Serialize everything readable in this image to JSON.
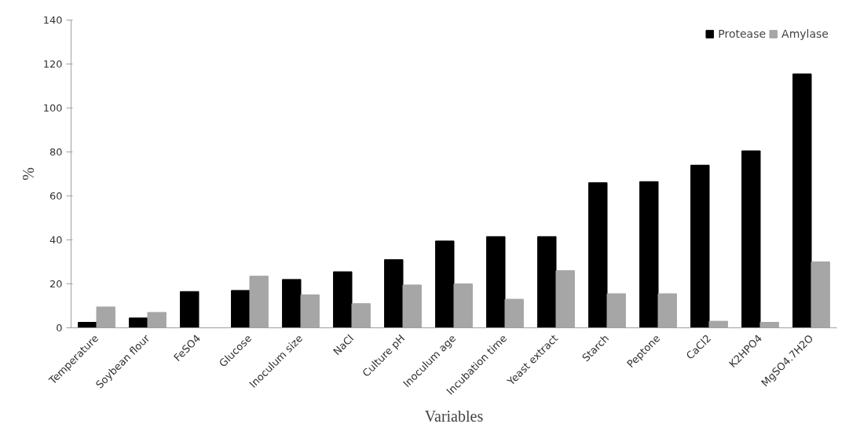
{
  "chart_data": {
    "type": "bar",
    "xlabel": "Variables",
    "ylabel": "%",
    "categories": [
      "Temperature",
      "Soybean flour",
      "FeSO4",
      "Glucose",
      "Inoculum size",
      "NaCl",
      "Culture pH",
      "Inoculum age",
      "Incubation time",
      "Yeast extract",
      "Starch",
      "Peptone",
      "CaCl2",
      "K2HPO4",
      "MgSO4.7H2O"
    ],
    "series": [
      {
        "name": "Protease",
        "color": "#000000",
        "values": [
          2.5,
          4.5,
          16.5,
          17,
          22,
          25.5,
          31,
          39.5,
          41.5,
          41.5,
          66,
          66.5,
          74,
          80.5,
          115.5
        ]
      },
      {
        "name": "Amylase",
        "color": "#a6a6a6",
        "values": [
          9.5,
          7,
          null,
          23.5,
          15,
          11,
          19.5,
          20,
          13,
          26,
          15.5,
          15.5,
          3,
          2.5,
          30
        ]
      }
    ],
    "ylim": [
      0,
      140
    ],
    "yticks": [
      0,
      20,
      40,
      60,
      80,
      100,
      120,
      140
    ],
    "grid": false,
    "legend": "top right"
  }
}
